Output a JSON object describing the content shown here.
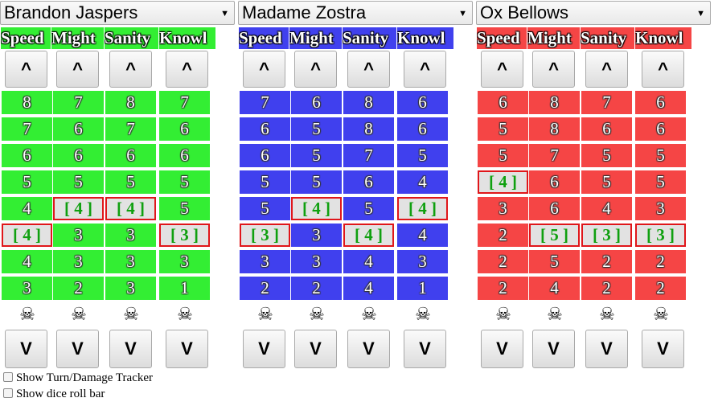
{
  "players": [
    {
      "name": "Brandon Jaspers",
      "color": "#33ee33",
      "stats": [
        {
          "label": "Speed",
          "values": [
            "8",
            "7",
            "6",
            "5",
            "4",
            "[ 4 ]",
            "4",
            "3"
          ],
          "current": 5
        },
        {
          "label": "Might",
          "values": [
            "7",
            "6",
            "6",
            "5",
            "[ 4 ]",
            "3",
            "3",
            "2"
          ],
          "current": 4
        },
        {
          "label": "Sanity",
          "values": [
            "8",
            "7",
            "6",
            "5",
            "[ 4 ]",
            "3",
            "3",
            "3"
          ],
          "current": 4
        },
        {
          "label": "Knowl",
          "values": [
            "7",
            "6",
            "6",
            "5",
            "5",
            "[ 3 ]",
            "3",
            "1"
          ],
          "current": 5
        }
      ]
    },
    {
      "name": "Madame Zostra",
      "color": "#4040ee",
      "stats": [
        {
          "label": "Speed",
          "values": [
            "7",
            "6",
            "6",
            "5",
            "5",
            "[ 3 ]",
            "3",
            "2"
          ],
          "current": 5
        },
        {
          "label": "Might",
          "values": [
            "6",
            "5",
            "5",
            "5",
            "[ 4 ]",
            "3",
            "3",
            "2"
          ],
          "current": 4
        },
        {
          "label": "Sanity",
          "values": [
            "8",
            "8",
            "7",
            "6",
            "5",
            "[ 4 ]",
            "4",
            "4"
          ],
          "current": 5
        },
        {
          "label": "Knowl",
          "values": [
            "6",
            "6",
            "5",
            "4",
            "[ 4 ]",
            "4",
            "3",
            "1"
          ],
          "current": 4
        }
      ]
    },
    {
      "name": "Ox Bellows",
      "color": "#f54545",
      "stats": [
        {
          "label": "Speed",
          "values": [
            "6",
            "5",
            "5",
            "[ 4 ]",
            "3",
            "2",
            "2",
            "2"
          ],
          "current": 3
        },
        {
          "label": "Might",
          "values": [
            "8",
            "8",
            "7",
            "6",
            "6",
            "[ 5 ]",
            "5",
            "4"
          ],
          "current": 5
        },
        {
          "label": "Sanity",
          "values": [
            "7",
            "6",
            "5",
            "5",
            "4",
            "[ 3 ]",
            "2",
            "2"
          ],
          "current": 5
        },
        {
          "label": "Knowl",
          "values": [
            "6",
            "6",
            "5",
            "5",
            "3",
            "[ 3 ]",
            "2",
            "2"
          ],
          "current": 5
        }
      ]
    }
  ],
  "up_label": "^",
  "down_label": "V",
  "death_icon": "skull-icon",
  "death_glyph": "☠",
  "options": [
    {
      "label": "Show Turn/Damage Tracker",
      "checked": false
    },
    {
      "label": "Show dice roll bar",
      "checked": false
    }
  ]
}
